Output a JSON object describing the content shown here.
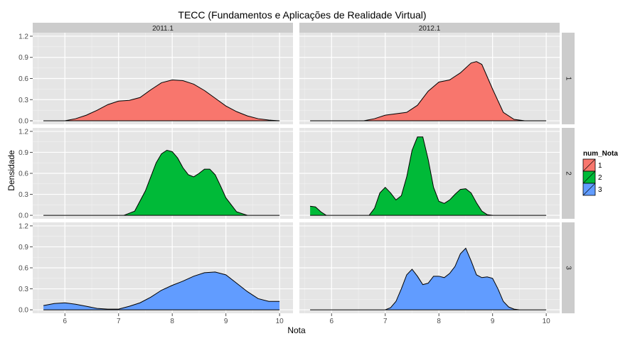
{
  "chart_data": {
    "type": "area",
    "title": "TECC (Fundamentos e Aplicações de Realidade Virtual)",
    "xlabel": "Nota",
    "ylabel": "Densidade",
    "xlim": [
      5.4,
      10.25
    ],
    "ylim": [
      -0.05,
      1.25
    ],
    "x_ticks": [
      6,
      7,
      8,
      9,
      10
    ],
    "y_ticks": [
      0.0,
      0.3,
      0.6,
      0.9,
      1.2
    ],
    "y_tick_labels": [
      "0.0",
      "0.3",
      "0.6",
      "0.9",
      "1.2"
    ],
    "grid": true,
    "col_facets": [
      "2011.1",
      "2012.1"
    ],
    "row_facets": [
      "1",
      "2",
      "3"
    ],
    "legend": {
      "title": "num_Nota",
      "placement": "right",
      "entries": [
        {
          "label": "1",
          "color": "#F8766D"
        },
        {
          "label": "2",
          "color": "#00BA38"
        },
        {
          "label": "3",
          "color": "#619CFF"
        }
      ]
    },
    "panels": [
      {
        "col": "2011.1",
        "row": "1",
        "series": "1",
        "color": "#F8766D",
        "x": [
          5.6,
          6.0,
          6.2,
          6.4,
          6.6,
          6.8,
          7.0,
          7.2,
          7.4,
          7.6,
          7.8,
          8.0,
          8.2,
          8.4,
          8.6,
          8.8,
          9.0,
          9.2,
          9.4,
          9.6,
          9.8,
          10.0
        ],
        "y": [
          0.0,
          0.0,
          0.03,
          0.08,
          0.15,
          0.23,
          0.28,
          0.29,
          0.33,
          0.44,
          0.54,
          0.58,
          0.57,
          0.52,
          0.43,
          0.32,
          0.21,
          0.13,
          0.07,
          0.03,
          0.01,
          0.0
        ]
      },
      {
        "col": "2012.1",
        "row": "1",
        "series": "1",
        "color": "#F8766D",
        "x": [
          6.6,
          6.8,
          7.0,
          7.2,
          7.4,
          7.6,
          7.8,
          8.0,
          8.2,
          8.4,
          8.6,
          8.7,
          8.8,
          9.0,
          9.2,
          9.4,
          9.6
        ],
        "y": [
          0.0,
          0.03,
          0.08,
          0.1,
          0.12,
          0.22,
          0.42,
          0.55,
          0.58,
          0.68,
          0.82,
          0.84,
          0.8,
          0.45,
          0.12,
          0.02,
          0.0
        ]
      },
      {
        "col": "2011.1",
        "row": "2",
        "series": "2",
        "color": "#00BA38",
        "x": [
          7.1,
          7.3,
          7.5,
          7.7,
          7.8,
          7.9,
          8.0,
          8.1,
          8.2,
          8.3,
          8.4,
          8.5,
          8.6,
          8.7,
          8.8,
          8.9,
          9.0,
          9.2,
          9.4
        ],
        "y": [
          0.0,
          0.06,
          0.35,
          0.75,
          0.88,
          0.93,
          0.91,
          0.82,
          0.68,
          0.58,
          0.55,
          0.6,
          0.66,
          0.66,
          0.58,
          0.42,
          0.25,
          0.05,
          0.0
        ]
      },
      {
        "col": "2012.1",
        "row": "2",
        "series": "2",
        "color": "#00BA38",
        "x": [
          5.6,
          5.7,
          5.8,
          5.9
        ],
        "y": [
          0.13,
          0.12,
          0.05,
          0.0
        ]
      },
      {
        "col": "2012.1",
        "row": "2",
        "series": "2",
        "color": "#00BA38",
        "x": [
          6.7,
          6.8,
          6.9,
          7.0,
          7.1,
          7.2,
          7.3,
          7.4,
          7.5,
          7.6,
          7.7,
          7.8,
          7.9,
          8.0,
          8.1,
          8.2,
          8.3,
          8.4,
          8.5,
          8.6,
          8.7,
          8.8,
          8.9,
          9.0
        ],
        "y": [
          0.0,
          0.1,
          0.32,
          0.4,
          0.32,
          0.22,
          0.28,
          0.55,
          0.93,
          1.12,
          1.12,
          0.8,
          0.4,
          0.2,
          0.17,
          0.22,
          0.3,
          0.37,
          0.38,
          0.32,
          0.18,
          0.06,
          0.01,
          0.0
        ]
      },
      {
        "col": "2011.1",
        "row": "3",
        "series": "3",
        "color": "#619CFF",
        "x": [
          5.6,
          5.8,
          6.0,
          6.2,
          6.4,
          6.6,
          6.8,
          7.0,
          7.2,
          7.4,
          7.6,
          7.8,
          8.0,
          8.2,
          8.4,
          8.6,
          8.8,
          9.0,
          9.2,
          9.4,
          9.6,
          9.8,
          10.0
        ],
        "y": [
          0.06,
          0.09,
          0.1,
          0.08,
          0.05,
          0.02,
          0.01,
          0.01,
          0.05,
          0.1,
          0.18,
          0.28,
          0.35,
          0.41,
          0.48,
          0.53,
          0.54,
          0.5,
          0.38,
          0.26,
          0.16,
          0.12,
          0.12
        ]
      },
      {
        "col": "2012.1",
        "row": "3",
        "series": "3",
        "color": "#619CFF",
        "x": [
          7.0,
          7.1,
          7.2,
          7.3,
          7.4,
          7.5,
          7.6,
          7.7,
          7.8,
          7.9,
          8.0,
          8.1,
          8.2,
          8.3,
          8.4,
          8.5,
          8.6,
          8.7,
          8.8,
          8.9,
          9.0,
          9.1,
          9.2,
          9.3,
          9.4,
          9.5
        ],
        "y": [
          0.0,
          0.03,
          0.12,
          0.3,
          0.5,
          0.58,
          0.48,
          0.36,
          0.38,
          0.48,
          0.48,
          0.46,
          0.52,
          0.62,
          0.8,
          0.88,
          0.7,
          0.5,
          0.46,
          0.47,
          0.45,
          0.3,
          0.12,
          0.04,
          0.01,
          0.0
        ]
      }
    ]
  }
}
